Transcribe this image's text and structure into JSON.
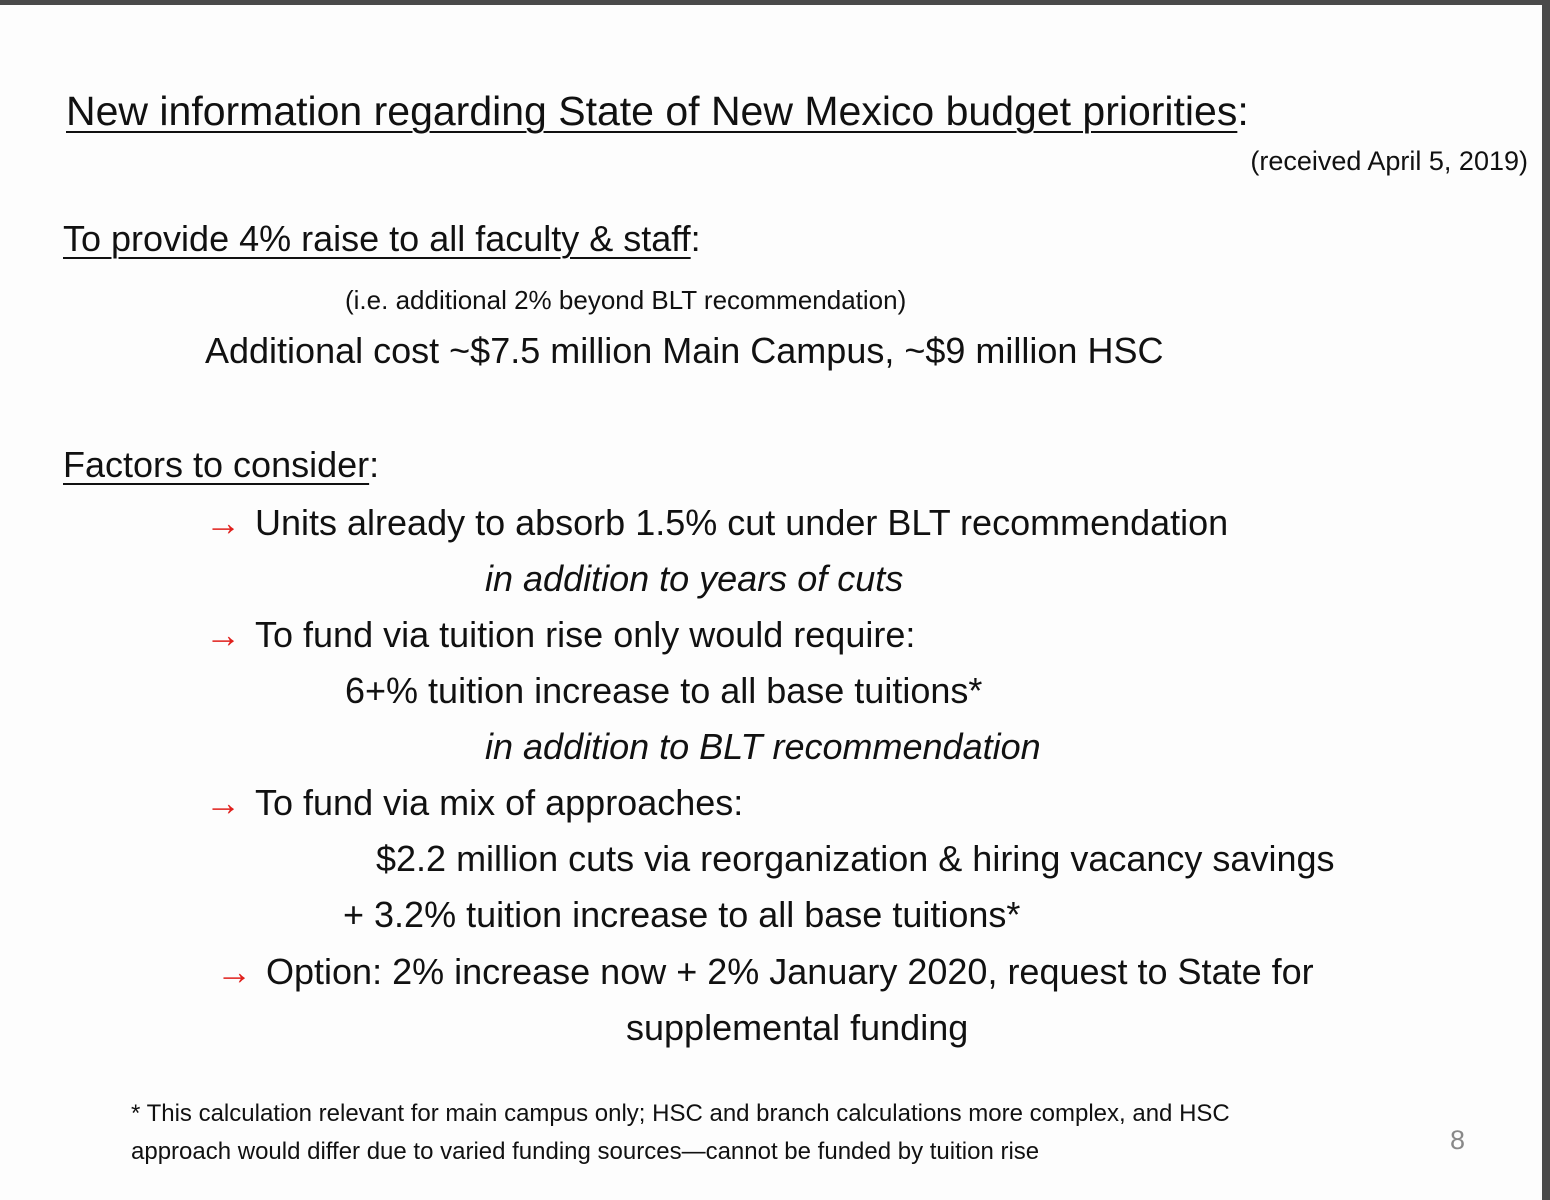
{
  "title": "New information regarding State of New Mexico budget priorities",
  "title_colon": ":",
  "received": "(received April 5, 2019)",
  "raise": {
    "heading": "To provide 4% raise to all faculty & staff",
    "colon": ":",
    "note": "(i.e. additional 2% beyond BLT recommendation)",
    "cost": "Additional cost ~$7.5 million Main Campus, ~$9 million HSC"
  },
  "factors": {
    "heading": "Factors to consider",
    "colon": ":",
    "arrow_icon": "right-arrow-icon",
    "arrow_glyph": "→",
    "arrow_color": "#e0201c",
    "items": [
      {
        "text": "Units already to absorb 1.5% cut under BLT recommendation",
        "sub": [
          "in addition to years of cuts"
        ]
      },
      {
        "text": "To fund via tuition rise only would require:",
        "sub": [
          "6+% tuition increase to all base tuitions*",
          "in addition to BLT recommendation"
        ]
      },
      {
        "text": "To fund via mix of approaches:",
        "sub": [
          "$2.2 million cuts via reorganization & hiring vacancy savings",
          "+ 3.2% tuition increase to all base tuitions*"
        ]
      },
      {
        "text": "Option: 2% increase now + 2% January 2020, request to State for",
        "sub": [
          "supplemental funding"
        ]
      }
    ]
  },
  "footnote": {
    "line1": "* This calculation relevant for main campus only; HSC and branch calculations more complex, and HSC",
    "line2": "approach would differ due to varied funding sources—cannot be funded by tuition rise"
  },
  "page_number": "8"
}
